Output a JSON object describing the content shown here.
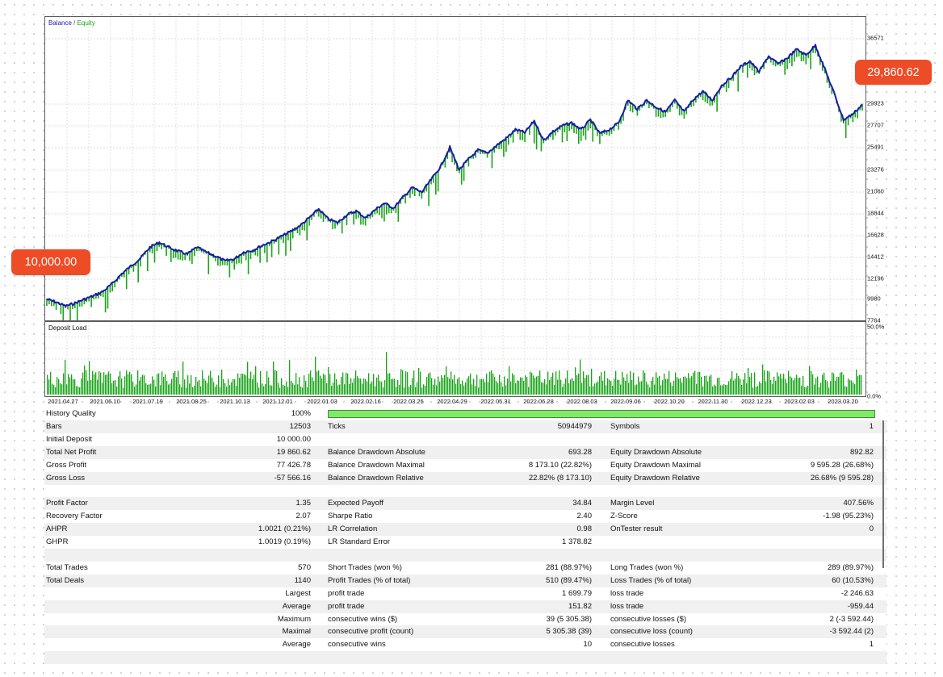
{
  "chart": {
    "legend": {
      "balance": "Balance",
      "separator": " / ",
      "equity": "Equity"
    },
    "y_ticks": [
      "36571",
      "29923",
      "27707",
      "25491",
      "23276",
      "21060",
      "18844",
      "16628",
      "14412",
      "12196",
      "9980",
      "7764"
    ],
    "callout_start": "10,000.00",
    "callout_end": "29,860.62",
    "colors": {
      "balance": "#1a1aa8",
      "equity": "#18a418",
      "callout": "#ee4c27"
    }
  },
  "deposit_load": {
    "label": "Deposit Load",
    "max_label": "50.0%",
    "min_label": "0.0%"
  },
  "x_ticks": [
    "2021.04.27",
    "2021.06.10",
    "2021.07.19",
    "2021.08.25",
    "2021.10.13",
    "2021.12.01",
    "2022.01.03",
    "2022.02.16",
    "2022.03.25",
    "2022.04.29",
    "2022.05.31",
    "2022.06.28",
    "2022.08.03",
    "2022.09.06",
    "2022.10.20",
    "2022.11.30",
    "2022.12.23",
    "2023.02.03",
    "2023.03.20"
  ],
  "chart_data": [
    {
      "type": "line",
      "title": "",
      "legend": [
        "Balance",
        "Equity"
      ],
      "x_start": "2021.04.27",
      "x_end": "2023.04",
      "ylim": [
        7764,
        37000
      ],
      "series": [
        {
          "name": "Balance",
          "color": "#1a1aa8",
          "values": [
            10000,
            9700,
            9300,
            9600,
            10000,
            10350,
            10800,
            11600,
            12600,
            13400,
            14200,
            15300,
            15800,
            15300,
            14900,
            14600,
            15300,
            14800,
            14400,
            13900,
            14100,
            14800,
            15000,
            15500,
            15900,
            16400,
            16900,
            17500,
            18300,
            19200,
            18200,
            17800,
            18600,
            19000,
            18300,
            19100,
            19800,
            19300,
            20400,
            21400,
            20900,
            22200,
            23500,
            25500,
            23200,
            24300,
            25200,
            24900,
            25700,
            26400,
            27300,
            27000,
            28200,
            26200,
            27100,
            27700,
            28000,
            27300,
            28300,
            26900,
            27300,
            28000,
            30300,
            29400,
            30300,
            29600,
            29100,
            30300,
            29100,
            30400,
            31200,
            30300,
            31800,
            32600,
            33700,
            34300,
            33200,
            34800,
            34000,
            34600,
            35500,
            34900,
            35900,
            33500,
            31000,
            28300,
            28900,
            29860
          ]
        },
        {
          "name": "Equity",
          "color": "#18a418",
          "note_free": true
        }
      ]
    },
    {
      "type": "bar",
      "title": "Deposit Load",
      "ylim": [
        0,
        50
      ],
      "ylabel_ticks": [
        "0.0%",
        "50.0%"
      ],
      "typical_range_percent": [
        5,
        18
      ]
    }
  ],
  "report": {
    "history_quality": {
      "label": "History Quality",
      "value": "100%",
      "fill": 1.0
    },
    "rows": [
      {
        "c1": "Bars",
        "v1": "12503",
        "c2": "Ticks",
        "v2": "50944979",
        "c3": "Symbols",
        "v3": "1",
        "shade": true
      },
      {
        "c1": "Initial Deposit",
        "v1": "10 000.00",
        "c2": "",
        "v2": "",
        "c3": "",
        "v3": "",
        "shade": false
      },
      {
        "c1": "Total Net Profit",
        "v1": "19 860.62",
        "c2": "Balance Drawdown Absolute",
        "v2": "693.28",
        "c3": "Equity Drawdown Absolute",
        "v3": "892.82",
        "shade": true
      },
      {
        "c1": "Gross Profit",
        "v1": "77 426.78",
        "c2": "Balance Drawdown Maximal",
        "v2": "8 173.10 (22.82%)",
        "c3": "Equity Drawdown Maximal",
        "v3": "9 595.28 (26.68%)",
        "shade": false
      },
      {
        "c1": "Gross Loss",
        "v1": "-57 566.16",
        "c2": "Balance Drawdown Relative",
        "v2": "22.82% (8 173.10)",
        "c3": "Equity Drawdown Relative",
        "v3": "26.68% (9 595.28)",
        "shade": true
      },
      {
        "c1": "",
        "v1": "",
        "c2": "",
        "v2": "",
        "c3": "",
        "v3": "",
        "shade": false
      },
      {
        "c1": "Profit Factor",
        "v1": "1.35",
        "c2": "Expected Payoff",
        "v2": "34.84",
        "c3": "Margin Level",
        "v3": "407.56%",
        "shade": true
      },
      {
        "c1": "Recovery Factor",
        "v1": "2.07",
        "c2": "Sharpe Ratio",
        "v2": "2.40",
        "c3": "Z-Score",
        "v3": "-1.98 (95.23%)",
        "shade": false
      },
      {
        "c1": "AHPR",
        "v1": "1.0021 (0.21%)",
        "c2": "LR Correlation",
        "v2": "0.98",
        "c3": "OnTester result",
        "v3": "0",
        "shade": true
      },
      {
        "c1": "GHPR",
        "v1": "1.0019 (0.19%)",
        "c2": "LR Standard Error",
        "v2": "1 378.82",
        "c3": "",
        "v3": "",
        "shade": false
      },
      {
        "c1": "",
        "v1": "",
        "c2": "",
        "v2": "",
        "c3": "",
        "v3": "",
        "shade": true
      },
      {
        "c1": "Total Trades",
        "v1": "570",
        "c2": "Short Trades (won %)",
        "v2": "281 (88.97%)",
        "c3": "Long Trades (won %)",
        "v3": "289 (89.97%)",
        "shade": false
      },
      {
        "c1": "Total Deals",
        "v1": "1140",
        "c2": "Profit Trades (% of total)",
        "v2": "510 (89.47%)",
        "c3": "Loss Trades (% of total)",
        "v3": "60 (10.53%)",
        "shade": true
      },
      {
        "c1": "",
        "v1": "Largest",
        "c2": "profit trade",
        "v2": "1 699.79",
        "c3": "loss trade",
        "v3": "-2 246.63",
        "shade": false,
        "right_label": true
      },
      {
        "c1": "",
        "v1": "Average",
        "c2": "profit trade",
        "v2": "151.82",
        "c3": "loss trade",
        "v3": "-959.44",
        "shade": true,
        "right_label": true
      },
      {
        "c1": "",
        "v1": "Maximum",
        "c2": "consecutive wins ($)",
        "v2": "39 (5 305.38)",
        "c3": "consecutive losses ($)",
        "v3": "2 (-3 592.44)",
        "shade": false,
        "right_label": true
      },
      {
        "c1": "",
        "v1": "Maximal",
        "c2": "consecutive profit (count)",
        "v2": "5 305.38 (39)",
        "c3": "consecutive loss (count)",
        "v3": "-3 592.44 (2)",
        "shade": true,
        "right_label": true
      },
      {
        "c1": "",
        "v1": "Average",
        "c2": "consecutive wins",
        "v2": "10",
        "c3": "consecutive losses",
        "v3": "1",
        "shade": false,
        "right_label": true
      },
      {
        "c1": "",
        "v1": "",
        "c2": "",
        "v2": "",
        "c3": "",
        "v3": "",
        "shade": true
      }
    ]
  }
}
